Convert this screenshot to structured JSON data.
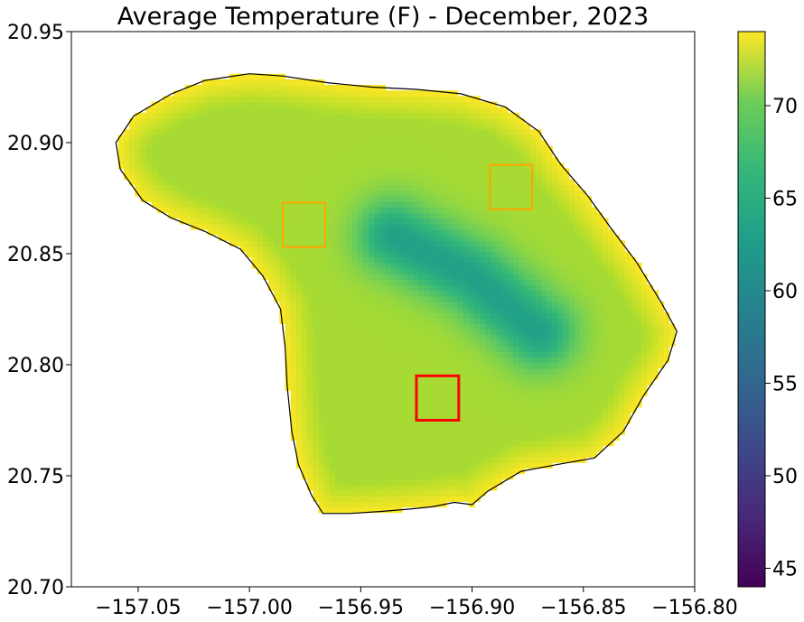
{
  "chart_data": {
    "type": "heatmap",
    "title": "Average Temperature (F) - December, 2023",
    "xlabel": "",
    "ylabel": "",
    "xlim": [
      -157.08,
      -156.8
    ],
    "ylim": [
      20.7,
      20.95
    ],
    "x_ticks": [
      -157.05,
      -157.0,
      -156.95,
      -156.9,
      -156.85,
      -156.8
    ],
    "x_tick_labels": [
      "−157.05",
      "−157.00",
      "−156.95",
      "−156.90",
      "−156.85",
      "−156.80"
    ],
    "y_ticks": [
      20.7,
      20.75,
      20.8,
      20.85,
      20.9,
      20.95
    ],
    "y_tick_labels": [
      "20.70",
      "20.75",
      "20.80",
      "20.85",
      "20.90",
      "20.95"
    ],
    "colorbar": {
      "colormap": "viridis",
      "range": [
        44,
        74
      ],
      "ticks": [
        45,
        50,
        55,
        60,
        65,
        70
      ],
      "tick_labels": [
        "45",
        "50",
        "55",
        "60",
        "65",
        "70"
      ]
    },
    "island_outline": [
      [
        -157.0,
        20.931
      ],
      [
        -156.985,
        20.93
      ],
      [
        -156.965,
        20.927
      ],
      [
        -156.945,
        20.925
      ],
      [
        -156.925,
        20.924
      ],
      [
        -156.905,
        20.922
      ],
      [
        -156.885,
        20.916
      ],
      [
        -156.87,
        20.905
      ],
      [
        -156.86,
        20.89
      ],
      [
        -156.848,
        20.876
      ],
      [
        -156.838,
        20.862
      ],
      [
        -156.826,
        20.846
      ],
      [
        -156.815,
        20.828
      ],
      [
        -156.808,
        20.815
      ],
      [
        -156.812,
        20.802
      ],
      [
        -156.823,
        20.786
      ],
      [
        -156.832,
        20.77
      ],
      [
        -156.845,
        20.758
      ],
      [
        -156.862,
        20.755
      ],
      [
        -156.878,
        20.752
      ],
      [
        -156.893,
        20.743
      ],
      [
        -156.9,
        20.737
      ],
      [
        -156.908,
        20.738
      ],
      [
        -156.918,
        20.736
      ],
      [
        -156.928,
        20.735
      ],
      [
        -156.94,
        20.734
      ],
      [
        -156.955,
        20.733
      ],
      [
        -156.967,
        20.733
      ],
      [
        -156.972,
        20.741
      ],
      [
        -156.978,
        20.755
      ],
      [
        -156.981,
        20.77
      ],
      [
        -156.983,
        20.79
      ],
      [
        -156.984,
        20.808
      ],
      [
        -156.986,
        20.825
      ],
      [
        -156.994,
        20.84
      ],
      [
        -157.004,
        20.852
      ],
      [
        -157.02,
        20.86
      ],
      [
        -157.035,
        20.866
      ],
      [
        -157.048,
        20.874
      ],
      [
        -157.058,
        20.888
      ],
      [
        -157.06,
        20.9
      ],
      [
        -157.052,
        20.912
      ],
      [
        -157.035,
        20.922
      ],
      [
        -157.02,
        20.928
      ]
    ],
    "regions": [
      {
        "lon": [
          -156.985,
          -156.966
        ],
        "lat": [
          20.853,
          20.873
        ],
        "color": "#ffa500"
      },
      {
        "lon": [
          -156.892,
          -156.873
        ],
        "lat": [
          20.87,
          20.89
        ],
        "color": "#ffa500"
      },
      {
        "lon": [
          -156.925,
          -156.906
        ],
        "lat": [
          20.775,
          20.795
        ],
        "color": "#ff0000"
      }
    ],
    "temperature_field": {
      "edge_value": 74,
      "interior_value": 70,
      "coldest_value": 61,
      "coldest_ridge": [
        [
          -156.87,
          20.815
        ],
        [
          -156.9,
          20.84
        ],
        [
          -156.935,
          20.858
        ]
      ]
    }
  }
}
